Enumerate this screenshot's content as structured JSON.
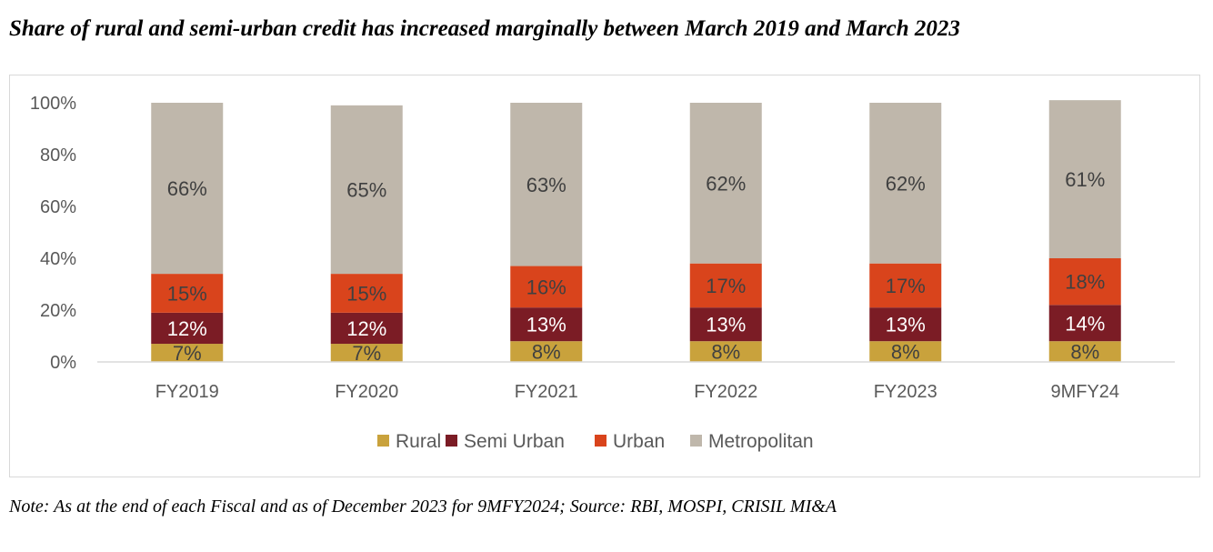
{
  "title": "Share of rural and semi-urban credit has increased marginally between March 2019 and March 2023",
  "note": "Note: As at the end of each Fiscal and as of December 2023 for 9MFY2024; Source: RBI, MOSPI, CRISIL MI&A",
  "chart_data": {
    "type": "bar",
    "stacked": true,
    "categories": [
      "FY2019",
      "FY2020",
      "FY2021",
      "FY2022",
      "FY2023",
      "9MFY24"
    ],
    "series": [
      {
        "name": "Rural",
        "values": [
          7,
          7,
          8,
          8,
          8,
          8
        ],
        "labels": [
          "7%",
          "7%",
          "8%",
          "8%",
          "8%",
          "8%"
        ],
        "color": "#c9a23c",
        "label_color": "#404040"
      },
      {
        "name": "Semi Urban",
        "values": [
          12,
          12,
          13,
          13,
          13,
          14
        ],
        "labels": [
          "12%",
          "12%",
          "13%",
          "13%",
          "13%",
          "14%"
        ],
        "color": "#7b1c25",
        "label_color": "#ffffff"
      },
      {
        "name": "Urban",
        "values": [
          15,
          15,
          16,
          17,
          17,
          18
        ],
        "labels": [
          "15%",
          "15%",
          "16%",
          "17%",
          "17%",
          "18%"
        ],
        "color": "#d9441c",
        "label_color": "#404040"
      },
      {
        "name": "Metropolitan",
        "values": [
          66,
          65,
          63,
          62,
          62,
          61
        ],
        "labels": [
          "66%",
          "65%",
          "63%",
          "62%",
          "62%",
          "61%"
        ],
        "color": "#bfb7ab",
        "label_color": "#404040"
      }
    ],
    "yticks": [
      "0%",
      "20%",
      "40%",
      "60%",
      "80%",
      "100%"
    ],
    "ylim": [
      0,
      100
    ],
    "grid": false,
    "legend_position": "bottom",
    "xlabel": "",
    "ylabel": ""
  }
}
